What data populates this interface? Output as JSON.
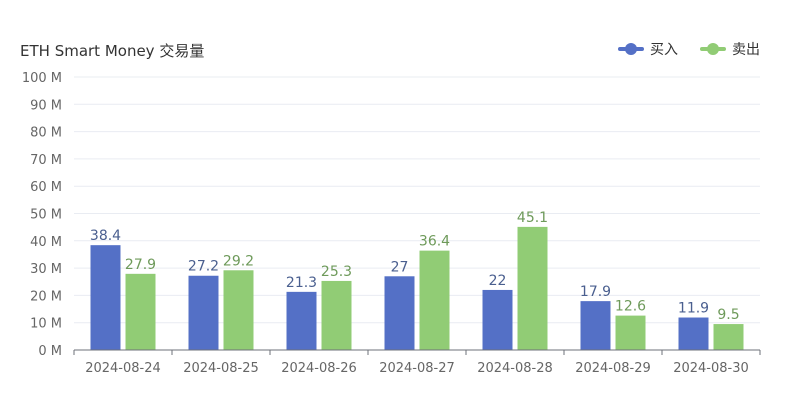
{
  "chart_data": {
    "type": "bar",
    "title": "ETH Smart Money 交易量",
    "xlabel": "",
    "ylabel": "",
    "categories": [
      "2024-08-24",
      "2024-08-25",
      "2024-08-26",
      "2024-08-27",
      "2024-08-28",
      "2024-08-29",
      "2024-08-30"
    ],
    "series": [
      {
        "name": "买入",
        "color": "#5470C6",
        "label_color": "#4A5F8F",
        "values": [
          38.4,
          27.2,
          21.3,
          27,
          22,
          17.9,
          11.9
        ]
      },
      {
        "name": "卖出",
        "color": "#91CC75",
        "label_color": "#6E9A5A",
        "values": [
          27.9,
          29.2,
          25.3,
          36.4,
          45.1,
          12.6,
          9.5
        ]
      }
    ],
    "ylim": [
      0,
      100
    ],
    "ytick_step": 10,
    "ytick_suffix": " M",
    "grid": true,
    "legend_position": "top-right"
  }
}
